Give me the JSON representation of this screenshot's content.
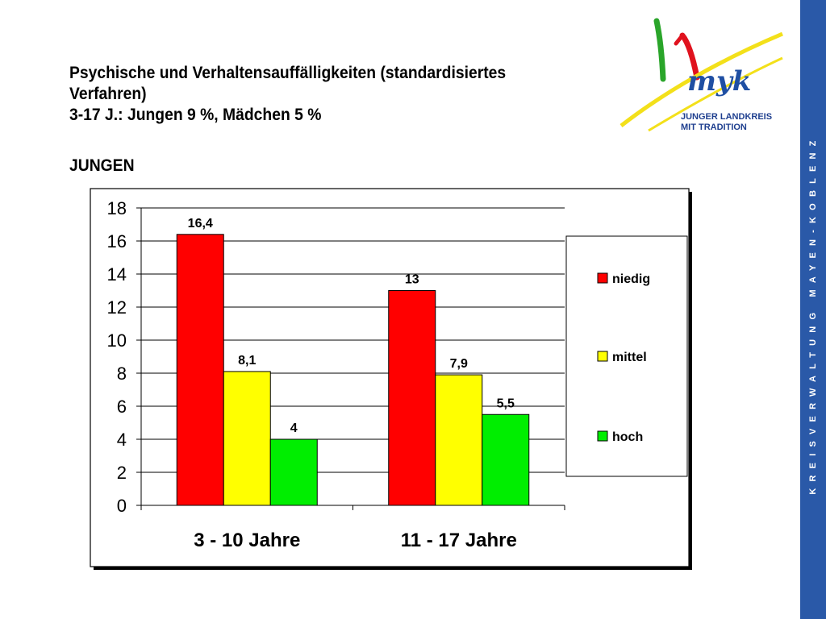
{
  "slide": {
    "title_lines": [
      "Psychische und Verhaltensauffälligkeiten (standardisiertes",
      "Verfahren)",
      "3-17 J.: Jungen  9 %, Mädchen 5 %"
    ],
    "subtitle": "JUNGEN"
  },
  "logo": {
    "text_line1": "JUNGER LANDKREIS",
    "text_line2": "MIT TRADITION",
    "script": "myk"
  },
  "sidebar": {
    "text": "KREISVERWALTUNG MAYEN-KOBLENZ",
    "color": "#2a59a8"
  },
  "chart_data": {
    "type": "bar",
    "categories": [
      "3 - 10 Jahre",
      "11 - 17 Jahre"
    ],
    "series": [
      {
        "name": "niedig",
        "color": "#ff0000",
        "values": [
          16.4,
          13
        ],
        "labels": [
          "16,4",
          "13"
        ]
      },
      {
        "name": "mittel",
        "color": "#ffff00",
        "values": [
          8.1,
          7.9
        ],
        "labels": [
          "8,1",
          "7,9"
        ]
      },
      {
        "name": "hoch",
        "color": "#00ee00",
        "values": [
          4,
          5.5
        ],
        "labels": [
          "4",
          "5,5"
        ]
      }
    ],
    "ylim": [
      0,
      18
    ],
    "yticks": [
      0,
      2,
      4,
      6,
      8,
      10,
      12,
      14,
      16,
      18
    ],
    "grid": true,
    "legend": "right"
  }
}
